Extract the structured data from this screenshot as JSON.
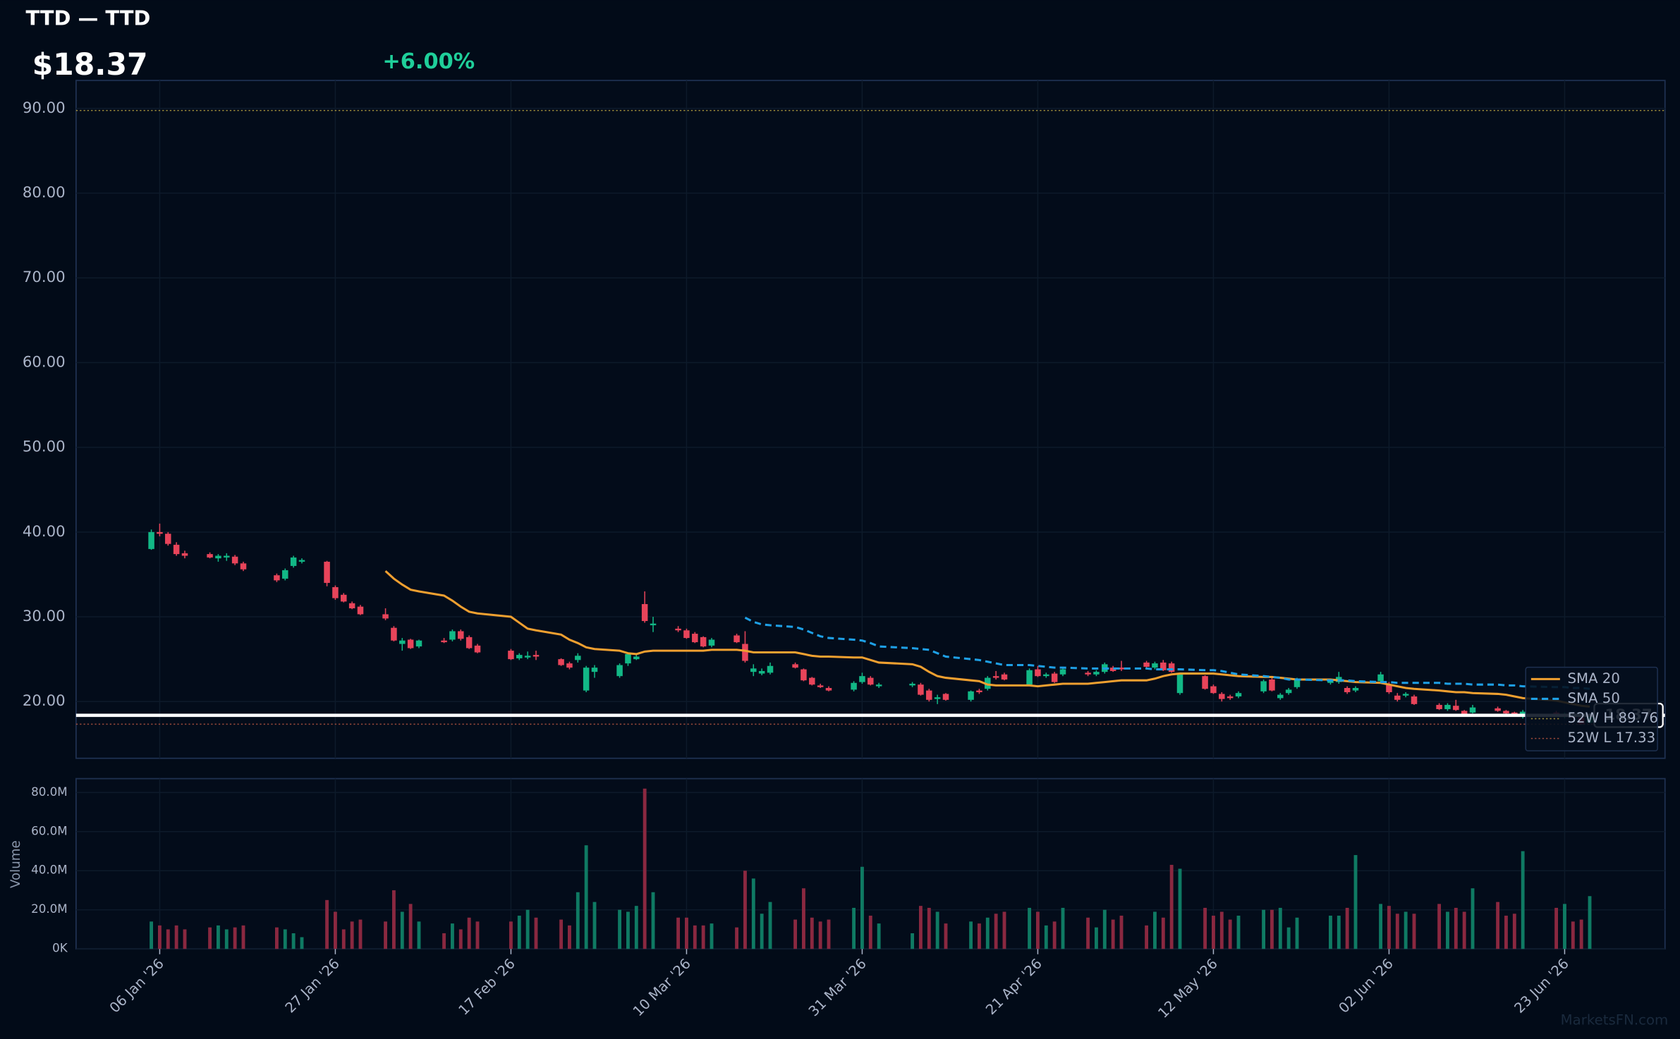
{
  "chart_data": {
    "type": "candlestick",
    "title": "TTD — TTD",
    "price_text": "$18.37",
    "change_text": "+6.00%",
    "last_price": 18.37,
    "watermark": "MarketsFN.com",
    "grid": true,
    "legend": "lower right",
    "up_color": "#12b886",
    "down_color": "#e8445a",
    "xlim": [
      "2025-12-27",
      "2026-07-05"
    ],
    "xticks": [
      {
        "value": "2026-01-06",
        "label": "06 Jan '26"
      },
      {
        "value": "2026-01-27",
        "label": "27 Jan '26"
      },
      {
        "value": "2026-02-17",
        "label": "17 Feb '26"
      },
      {
        "value": "2026-03-10",
        "label": "10 Mar '26"
      },
      {
        "value": "2026-03-31",
        "label": "31 Mar '26"
      },
      {
        "value": "2026-04-21",
        "label": "21 Apr '26"
      },
      {
        "value": "2026-05-12",
        "label": "12 May '26"
      },
      {
        "value": "2026-06-02",
        "label": "02 Jun '26"
      },
      {
        "value": "2026-06-23",
        "label": "23 Jun '26"
      }
    ],
    "ylim": [
      13.3,
      93.3
    ],
    "yticks": [
      {
        "value": 20,
        "label": "20.00"
      },
      {
        "value": 30,
        "label": "30.00"
      },
      {
        "value": 40,
        "label": "40.00"
      },
      {
        "value": 50,
        "label": "50.00"
      },
      {
        "value": 60,
        "label": "60.00"
      },
      {
        "value": 70,
        "label": "70.00"
      },
      {
        "value": 80,
        "label": "80.00"
      },
      {
        "value": 90,
        "label": "90.00"
      }
    ],
    "x": [
      "2026-01-05",
      "2026-01-06",
      "2026-01-07",
      "2026-01-08",
      "2026-01-09",
      "2026-01-12",
      "2026-01-13",
      "2026-01-14",
      "2026-01-15",
      "2026-01-16",
      "2026-01-20",
      "2026-01-21",
      "2026-01-22",
      "2026-01-23",
      "2026-01-26",
      "2026-01-27",
      "2026-01-28",
      "2026-01-29",
      "2026-01-30",
      "2026-02-02",
      "2026-02-03",
      "2026-02-04",
      "2026-02-05",
      "2026-02-06",
      "2026-02-09",
      "2026-02-10",
      "2026-02-11",
      "2026-02-12",
      "2026-02-13",
      "2026-02-17",
      "2026-02-18",
      "2026-02-19",
      "2026-02-20",
      "2026-02-23",
      "2026-02-24",
      "2026-02-25",
      "2026-02-26",
      "2026-02-27",
      "2026-03-02",
      "2026-03-03",
      "2026-03-04",
      "2026-03-05",
      "2026-03-06",
      "2026-03-09",
      "2026-03-10",
      "2026-03-11",
      "2026-03-12",
      "2026-03-13",
      "2026-03-16",
      "2026-03-17",
      "2026-03-18",
      "2026-03-19",
      "2026-03-20",
      "2026-03-23",
      "2026-03-24",
      "2026-03-25",
      "2026-03-26",
      "2026-03-27",
      "2026-03-30",
      "2026-03-31",
      "2026-04-01",
      "2026-04-02",
      "2026-04-06",
      "2026-04-07",
      "2026-04-08",
      "2026-04-09",
      "2026-04-10",
      "2026-04-13",
      "2026-04-14",
      "2026-04-15",
      "2026-04-16",
      "2026-04-17",
      "2026-04-20",
      "2026-04-21",
      "2026-04-22",
      "2026-04-23",
      "2026-04-24",
      "2026-04-27",
      "2026-04-28",
      "2026-04-29",
      "2026-04-30",
      "2026-05-01",
      "2026-05-04",
      "2026-05-05",
      "2026-05-06",
      "2026-05-07",
      "2026-05-08",
      "2026-05-11",
      "2026-05-12",
      "2026-05-13",
      "2026-05-14",
      "2026-05-15",
      "2026-05-18",
      "2026-05-19",
      "2026-05-20",
      "2026-05-21",
      "2026-05-22",
      "2026-05-26",
      "2026-05-27",
      "2026-05-28",
      "2026-05-29",
      "2026-06-01",
      "2026-06-02",
      "2026-06-03",
      "2026-06-04",
      "2026-06-05",
      "2026-06-08",
      "2026-06-09",
      "2026-06-10",
      "2026-06-11",
      "2026-06-12",
      "2026-06-15",
      "2026-06-16",
      "2026-06-17",
      "2026-06-18",
      "2026-06-22",
      "2026-06-23",
      "2026-06-24",
      "2026-06-25",
      "2026-06-26"
    ],
    "open": [
      38.0,
      40.0,
      39.8,
      38.5,
      37.5,
      37.4,
      36.9,
      37.0,
      37.1,
      36.3,
      34.9,
      34.5,
      36.0,
      36.5,
      36.5,
      33.5,
      32.6,
      31.6,
      31.2,
      30.3,
      28.7,
      26.8,
      27.3,
      26.5,
      27.2,
      27.3,
      28.3,
      27.6,
      26.6,
      26.0,
      25.1,
      25.2,
      25.5,
      25.0,
      24.5,
      24.9,
      21.3,
      23.5,
      23.0,
      24.5,
      25.0,
      31.5,
      29.0,
      28.6,
      28.4,
      28.0,
      27.6,
      26.6,
      27.8,
      26.8,
      23.5,
      23.3,
      23.4,
      24.4,
      23.8,
      22.8,
      21.9,
      21.6,
      21.4,
      22.3,
      22.8,
      21.8,
      21.9,
      22.0,
      21.3,
      20.3,
      20.9,
      20.2,
      21.3,
      21.5,
      23.0,
      23.2,
      22.0,
      23.8,
      23.0,
      23.3,
      23.2,
      23.4,
      23.2,
      23.5,
      24.0,
      24.0,
      24.6,
      24.0,
      24.6,
      24.5,
      21.0,
      23.0,
      21.8,
      20.9,
      20.6,
      20.6,
      21.2,
      22.6,
      20.4,
      21.0,
      21.7,
      22.2,
      22.3,
      21.6,
      21.3,
      22.4,
      22.0,
      20.7,
      20.7,
      20.6,
      19.6,
      19.1,
      19.5,
      18.9,
      18.7,
      19.2,
      18.9,
      18.7,
      18.2,
      18.7,
      18.2,
      18.5,
      18.1,
      17.5
    ],
    "high": [
      40.3,
      41.0,
      40.0,
      38.8,
      37.8,
      37.6,
      37.4,
      37.5,
      37.3,
      36.5,
      35.1,
      35.7,
      37.2,
      36.9,
      36.6,
      33.7,
      32.8,
      31.8,
      31.4,
      31.0,
      28.9,
      27.5,
      27.4,
      27.3,
      27.5,
      28.5,
      28.5,
      27.8,
      26.8,
      26.2,
      25.7,
      25.9,
      26.0,
      25.1,
      24.7,
      25.7,
      24.2,
      24.3,
      24.5,
      25.8,
      25.5,
      33.0,
      30.0,
      28.9,
      28.6,
      28.2,
      27.7,
      27.5,
      28.0,
      28.3,
      24.4,
      23.9,
      24.6,
      24.6,
      23.9,
      22.9,
      22.1,
      21.8,
      22.4,
      23.4,
      23.0,
      22.2,
      22.3,
      22.2,
      21.5,
      20.8,
      21.0,
      21.3,
      21.5,
      23.0,
      23.6,
      23.4,
      23.9,
      24.2,
      23.4,
      23.5,
      24.0,
      23.6,
      23.7,
      24.6,
      24.2,
      24.8,
      24.8,
      24.7,
      24.9,
      24.7,
      23.4,
      23.1,
      22.0,
      21.1,
      20.8,
      21.2,
      22.6,
      22.8,
      21.0,
      21.6,
      22.8,
      22.6,
      23.5,
      21.8,
      21.8,
      23.5,
      22.3,
      21.0,
      21.1,
      20.8,
      19.8,
      19.8,
      20.2,
      19.0,
      19.6,
      19.4,
      19.0,
      18.8,
      19.0,
      18.9,
      18.7,
      18.6,
      18.2,
      18.6
    ],
    "low": [
      37.9,
      39.5,
      38.4,
      37.2,
      36.9,
      36.9,
      36.5,
      36.6,
      36.1,
      35.4,
      34.1,
      34.3,
      35.8,
      36.3,
      33.6,
      32.0,
      31.7,
      30.9,
      30.2,
      29.6,
      27.1,
      26.0,
      26.2,
      26.3,
      26.9,
      27.1,
      27.2,
      26.2,
      25.7,
      24.9,
      24.9,
      25.0,
      24.9,
      24.2,
      23.8,
      24.6,
      21.1,
      22.8,
      22.8,
      24.2,
      24.9,
      29.3,
      28.2,
      28.2,
      27.4,
      26.9,
      26.4,
      26.4,
      26.9,
      24.6,
      23.0,
      23.1,
      23.2,
      23.9,
      22.4,
      21.9,
      21.6,
      21.2,
      21.2,
      22.1,
      21.9,
      21.6,
      21.7,
      20.7,
      20.0,
      19.7,
      20.1,
      20.0,
      20.9,
      21.3,
      22.6,
      22.5,
      21.9,
      22.9,
      22.8,
      22.2,
      23.0,
      23.0,
      23.0,
      23.3,
      23.5,
      23.6,
      24.0,
      23.8,
      23.6,
      23.4,
      20.8,
      21.4,
      20.9,
      20.0,
      20.2,
      20.4,
      21.0,
      21.2,
      20.2,
      20.8,
      21.5,
      22.0,
      22.1,
      20.9,
      21.1,
      22.2,
      20.9,
      20.0,
      20.5,
      19.6,
      19.0,
      18.9,
      18.9,
      18.4,
      18.6,
      18.8,
      18.5,
      18.2,
      18.0,
      18.2,
      18.0,
      18.0,
      17.33,
      17.4
    ],
    "close": [
      40.0,
      39.8,
      38.6,
      37.4,
      37.2,
      37.0,
      37.2,
      37.2,
      36.3,
      35.6,
      34.3,
      35.5,
      37.0,
      36.7,
      34.0,
      32.2,
      31.8,
      31.0,
      30.3,
      29.8,
      27.2,
      27.2,
      26.3,
      27.2,
      27.0,
      28.3,
      27.4,
      26.3,
      25.8,
      25.0,
      25.5,
      25.4,
      25.3,
      24.3,
      24.0,
      25.4,
      24.0,
      24.0,
      24.3,
      25.6,
      25.3,
      29.5,
      29.2,
      28.4,
      27.5,
      27.0,
      26.5,
      27.3,
      27.0,
      24.8,
      23.9,
      23.6,
      24.2,
      24.0,
      22.5,
      22.0,
      21.7,
      21.3,
      22.2,
      23.0,
      22.0,
      22.0,
      22.1,
      20.8,
      20.2,
      20.5,
      20.2,
      21.2,
      21.1,
      22.8,
      22.8,
      22.6,
      23.7,
      23.0,
      23.2,
      22.3,
      23.8,
      23.2,
      23.5,
      24.4,
      23.6,
      23.8,
      24.1,
      24.5,
      23.7,
      23.5,
      23.2,
      21.5,
      21.0,
      20.3,
      20.4,
      21.0,
      22.4,
      21.3,
      20.8,
      21.4,
      22.6,
      22.4,
      22.9,
      21.1,
      21.6,
      23.2,
      21.1,
      20.2,
      20.9,
      19.7,
      19.1,
      19.6,
      19.0,
      18.5,
      19.3,
      18.9,
      18.6,
      18.3,
      18.8,
      18.3,
      18.5,
      18.1,
      17.33,
      18.37
    ],
    "series": [
      {
        "name": "SMA 20",
        "color": "#f0a030",
        "style": "solid",
        "values": [
          null,
          null,
          null,
          null,
          null,
          null,
          null,
          null,
          null,
          null,
          null,
          null,
          null,
          null,
          null,
          null,
          null,
          null,
          null,
          35.4,
          34.5,
          33.8,
          33.2,
          33.0,
          32.5,
          31.9,
          31.2,
          30.6,
          30.4,
          30.0,
          29.3,
          28.6,
          28.4,
          27.9,
          27.3,
          26.9,
          26.4,
          26.2,
          26.0,
          25.7,
          25.6,
          25.9,
          26.0,
          26.0,
          26.0,
          26.0,
          26.0,
          26.1,
          26.1,
          26.0,
          25.8,
          25.8,
          25.8,
          25.8,
          25.6,
          25.4,
          25.3,
          25.3,
          25.2,
          25.2,
          24.9,
          24.6,
          24.4,
          24.1,
          23.5,
          23.0,
          22.8,
          22.5,
          22.4,
          22.0,
          21.9,
          21.9,
          21.9,
          21.8,
          21.9,
          22.0,
          22.1,
          22.1,
          22.2,
          22.3,
          22.4,
          22.5,
          22.5,
          22.7,
          23.0,
          23.2,
          23.3,
          23.3,
          23.3,
          23.2,
          23.1,
          23.0,
          22.9,
          22.9,
          22.8,
          22.7,
          22.6,
          22.6,
          22.5,
          22.4,
          22.3,
          22.2,
          22.0,
          21.8,
          21.6,
          21.5,
          21.3,
          21.2,
          21.1,
          21.1,
          21.0,
          20.9,
          20.8,
          20.6,
          20.4,
          20.1,
          19.9,
          19.7,
          19.5,
          19.4
        ]
      },
      {
        "name": "SMA 50",
        "color": "#1ea0e6",
        "style": "dashed",
        "values": [
          null,
          null,
          null,
          null,
          null,
          null,
          null,
          null,
          null,
          null,
          null,
          null,
          null,
          null,
          null,
          null,
          null,
          null,
          null,
          null,
          null,
          null,
          null,
          null,
          null,
          null,
          null,
          null,
          null,
          null,
          null,
          null,
          null,
          null,
          null,
          null,
          null,
          null,
          null,
          null,
          null,
          null,
          null,
          null,
          null,
          null,
          null,
          null,
          null,
          29.9,
          29.4,
          29.1,
          29.0,
          28.8,
          28.5,
          28.1,
          27.7,
          27.5,
          27.3,
          27.2,
          26.9,
          26.5,
          26.3,
          26.2,
          26.1,
          25.7,
          25.3,
          25.0,
          24.9,
          24.7,
          24.5,
          24.3,
          24.3,
          24.2,
          24.1,
          24.0,
          24.0,
          23.9,
          23.9,
          23.9,
          23.9,
          23.9,
          23.9,
          23.8,
          23.8,
          23.8,
          23.8,
          23.7,
          23.7,
          23.6,
          23.4,
          23.2,
          23.0,
          22.9,
          22.8,
          22.6,
          22.6,
          22.5,
          22.5,
          22.5,
          22.4,
          22.3,
          22.3,
          22.2,
          22.2,
          22.2,
          22.2,
          22.1,
          22.1,
          22.1,
          22.0,
          22.0,
          21.9,
          21.9,
          21.8,
          21.7,
          21.7,
          21.6,
          21.6,
          21.5
        ]
      }
    ],
    "high_52w": {
      "value": 89.76,
      "label": "52W H 89.76",
      "color": "#9a8a3a"
    },
    "low_52w": {
      "value": 17.33,
      "label": "52W L 17.33",
      "color": "#9a4a3a"
    },
    "volume": {
      "label": "Volume",
      "up_color": "#0f7a63",
      "down_color": "#8a2840",
      "ylim": [
        0,
        87100000
      ],
      "yticks": [
        {
          "value": 0,
          "label": "0K"
        },
        {
          "value": 20000000,
          "label": "20.0M"
        },
        {
          "value": 40000000,
          "label": "40.0M"
        },
        {
          "value": 60000000,
          "label": "60.0M"
        },
        {
          "value": 80000000,
          "label": "80.0M"
        }
      ],
      "values": [
        14000000,
        12000000,
        10000000,
        12000000,
        10000000,
        11000000,
        12000000,
        10000000,
        11000000,
        12000000,
        11000000,
        10000000,
        8000000,
        6000000,
        25000000,
        19000000,
        10000000,
        14000000,
        15000000,
        14000000,
        30000000,
        19000000,
        23000000,
        14000000,
        8000000,
        13000000,
        10000000,
        16000000,
        14000000,
        14000000,
        17000000,
        20000000,
        16000000,
        15000000,
        12000000,
        29000000,
        53000000,
        24000000,
        20000000,
        19000000,
        22000000,
        82000000,
        29000000,
        16000000,
        16000000,
        12000000,
        12000000,
        13000000,
        11000000,
        40000000,
        36000000,
        18000000,
        24000000,
        15000000,
        31000000,
        16000000,
        14000000,
        15000000,
        21000000,
        42000000,
        17000000,
        13000000,
        8000000,
        22000000,
        21000000,
        19000000,
        13000000,
        14000000,
        13000000,
        16000000,
        18000000,
        19000000,
        21000000,
        19000000,
        12000000,
        14000000,
        21000000,
        16000000,
        11000000,
        20000000,
        15000000,
        17000000,
        12000000,
        19000000,
        16000000,
        43000000,
        41000000,
        21000000,
        17000000,
        19000000,
        15000000,
        17000000,
        20000000,
        20000000,
        21000000,
        11000000,
        16000000,
        17000000,
        17000000,
        21000000,
        48000000,
        23000000,
        22000000,
        18000000,
        19000000,
        18000000,
        23000000,
        19000000,
        21000000,
        19000000,
        31000000,
        24000000,
        17000000,
        18000000,
        50000000,
        21000000,
        23000000,
        14000000,
        15000000,
        27000000
      ]
    }
  }
}
